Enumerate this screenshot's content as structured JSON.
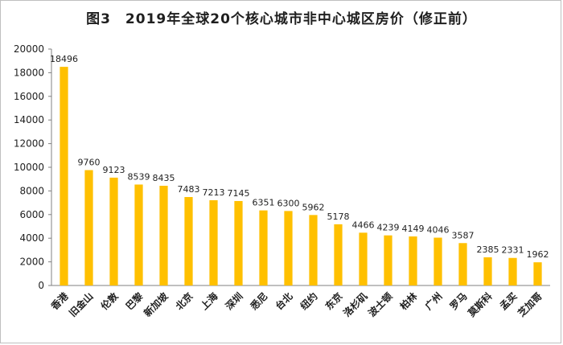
{
  "chart_data": {
    "type": "bar",
    "title": "图3　2019年全球20个核心城市非中心城区房价（修正前）",
    "categories": [
      "香港",
      "旧金山",
      "伦敦",
      "巴黎",
      "新加坡",
      "北京",
      "上海",
      "深圳",
      "悉尼",
      "台北",
      "纽约",
      "东京",
      "洛杉矶",
      "波士顿",
      "柏林",
      "广州",
      "罗马",
      "莫斯科",
      "孟买",
      "芝加哥"
    ],
    "values": [
      18496,
      9760,
      9123,
      8539,
      8435,
      7483,
      7213,
      7145,
      6351,
      6300,
      5962,
      5178,
      4466,
      4239,
      4149,
      4046,
      3587,
      2385,
      2331,
      1962
    ],
    "data_labels": [
      "18496",
      "9760",
      "9123",
      "8539",
      "8435",
      "7483",
      "7213",
      "7145",
      "6351",
      "6300",
      "5962",
      "5178",
      "4466",
      "4239",
      "4149",
      "4046",
      "3587",
      "2385",
      "2331",
      "1962"
    ],
    "yticks": [
      "0",
      "2000",
      "4000",
      "6000",
      "8000",
      "10000",
      "12000",
      "14000",
      "16000",
      "18000",
      "20000"
    ],
    "ylim": [
      0,
      20000
    ],
    "xlabel": "",
    "ylabel": "",
    "grid": false,
    "legend": "none",
    "bar_color": "#FFC000",
    "axis_color": "#808080"
  }
}
